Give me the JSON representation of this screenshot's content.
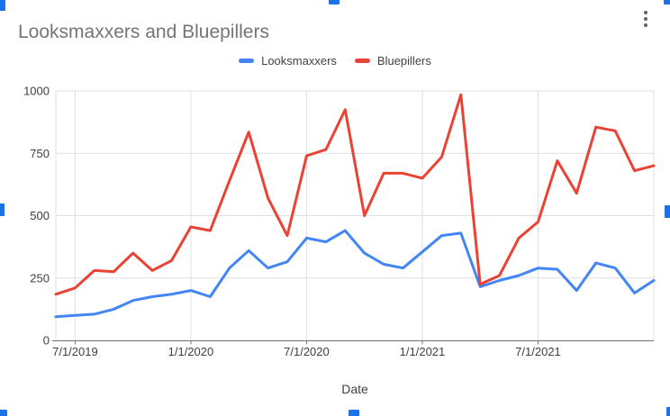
{
  "chart": {
    "title": "Looksmaxxers and Bluepillers",
    "x_axis_title": "Date"
  },
  "icons": {
    "more_vert": "⋮"
  },
  "colors": {
    "series_looksmaxxers": "#4285F4",
    "series_bluepillers": "#EA4335",
    "title_text": "#757575",
    "legend_text": "#424242",
    "axis_text": "#3C4043",
    "gridline": "#E0E0E0",
    "axis_line": "#6E7377",
    "menu_icon": "#5F6368",
    "selection_handle": "#1A73E8",
    "background": "#FFFFFF"
  },
  "chart_data": {
    "type": "line",
    "title": "Looksmaxxers and Bluepillers",
    "xlabel": "Date",
    "ylabel": "",
    "grid": true,
    "legend_position": "top",
    "ylim": [
      0,
      1000
    ],
    "y_ticks": [
      0,
      250,
      500,
      750,
      1000
    ],
    "x_tick_labels": [
      "7/1/2019",
      "1/1/2020",
      "7/1/2020",
      "1/1/2021",
      "7/1/2021"
    ],
    "x_tick_indices": [
      1,
      7,
      13,
      19,
      25
    ],
    "x": [
      "6/1/2019",
      "7/1/2019",
      "8/1/2019",
      "9/1/2019",
      "10/1/2019",
      "11/1/2019",
      "12/1/2019",
      "1/1/2020",
      "2/1/2020",
      "3/1/2020",
      "4/1/2020",
      "5/1/2020",
      "6/1/2020",
      "7/1/2020",
      "8/1/2020",
      "9/1/2020",
      "10/1/2020",
      "11/1/2020",
      "12/1/2020",
      "1/1/2021",
      "2/1/2021",
      "3/1/2021",
      "4/1/2021",
      "5/1/2021",
      "6/1/2021",
      "7/1/2021",
      "8/1/2021",
      "9/1/2021",
      "10/1/2021",
      "11/1/2021",
      "12/1/2021",
      "1/1/2022"
    ],
    "series": [
      {
        "name": "Looksmaxxers",
        "color": "#4285F4",
        "values": [
          95,
          100,
          105,
          125,
          160,
          175,
          185,
          200,
          175,
          290,
          360,
          290,
          315,
          410,
          395,
          440,
          350,
          305,
          290,
          355,
          420,
          430,
          215,
          240,
          260,
          290,
          285,
          200,
          310,
          290,
          190,
          240
        ]
      },
      {
        "name": "Bluepillers",
        "color": "#EA4335",
        "values": [
          185,
          210,
          280,
          275,
          350,
          280,
          320,
          455,
          440,
          640,
          835,
          570,
          420,
          740,
          765,
          925,
          500,
          670,
          670,
          650,
          735,
          985,
          225,
          260,
          410,
          475,
          720,
          590,
          855,
          840,
          680,
          700
        ]
      }
    ]
  }
}
